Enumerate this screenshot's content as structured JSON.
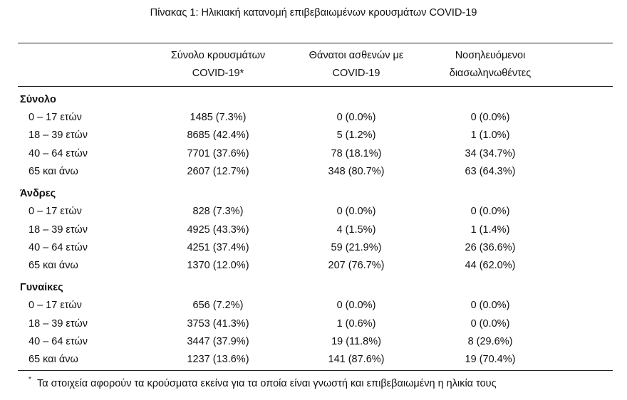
{
  "title": "Πίνακας 1: Ηλικιακή κατανομή επιβεβαιωμένων κρουσμάτων COVID-19",
  "table": {
    "header": [
      [
        "Σύνολο κρουσμάτων",
        "COVID-19*"
      ],
      [
        "Θάνατοι ασθενών με",
        "COVID-19"
      ],
      [
        "Νοσηλευόμενοι",
        "διασωληνωθέντες"
      ]
    ],
    "groups": [
      {
        "label": "Σύνολο",
        "rows": [
          [
            "0 – 17 ετών",
            "1485 (7.3%)",
            "0 (0.0%)",
            "0 (0.0%)"
          ],
          [
            "18 – 39 ετών",
            "8685 (42.4%)",
            "5 (1.2%)",
            "1 (1.0%)"
          ],
          [
            "40 – 64 ετών",
            "7701 (37.6%)",
            "78 (18.1%)",
            "34 (34.7%)"
          ],
          [
            "65 και άνω",
            "2607 (12.7%)",
            "348 (80.7%)",
            "63 (64.3%)"
          ]
        ]
      },
      {
        "label": "Άνδρες",
        "rows": [
          [
            "0 – 17 ετών",
            "828 (7.3%)",
            "0 (0.0%)",
            "0 (0.0%)"
          ],
          [
            "18 – 39 ετών",
            "4925 (43.3%)",
            "4 (1.5%)",
            "1 (1.4%)"
          ],
          [
            "40 – 64 ετών",
            "4251 (37.4%)",
            "59 (21.9%)",
            "26 (36.6%)"
          ],
          [
            "65 και άνω",
            "1370 (12.0%)",
            "207 (76.7%)",
            "44 (62.0%)"
          ]
        ]
      },
      {
        "label": "Γυναίκες",
        "rows": [
          [
            "0 – 17 ετών",
            "656 (7.2%)",
            "0 (0.0%)",
            "0 (0.0%)"
          ],
          [
            "18 – 39 ετών",
            "3753 (41.3%)",
            "1 (0.6%)",
            "0 (0.0%)"
          ],
          [
            "40 – 64 ετών",
            "3447 (37.9%)",
            "19 (11.8%)",
            "8 (29.6%)"
          ],
          [
            "65 και άνω",
            "1237 (13.6%)",
            "141 (87.6%)",
            "19 (70.4%)"
          ]
        ]
      }
    ]
  },
  "footnote": {
    "mark": "*",
    "text": "Τα στοιχεία αφορούν τα κρούσματα εκείνα για τα οποία είναι γνωστή και επιβεβαιωμένη η ηλικία τους"
  }
}
